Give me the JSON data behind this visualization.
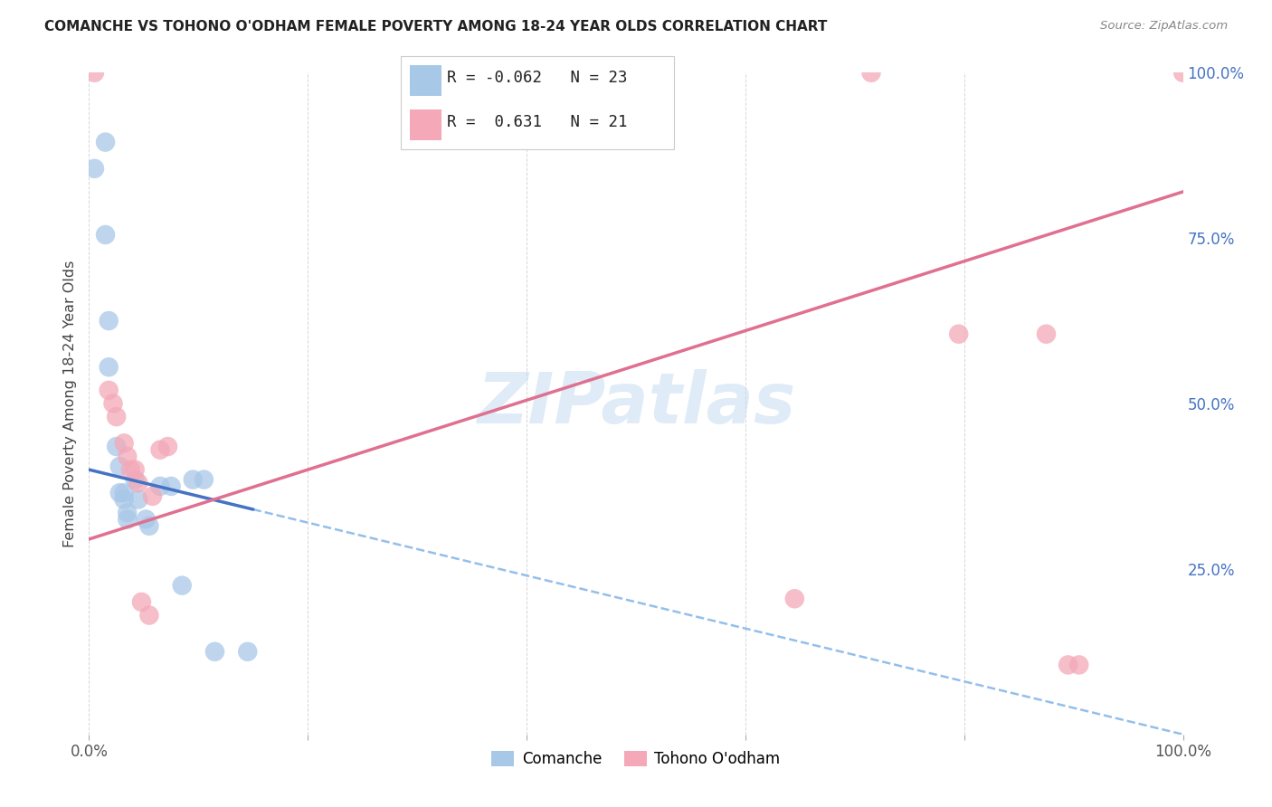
{
  "title": "COMANCHE VS TOHONO O'ODHAM FEMALE POVERTY AMONG 18-24 YEAR OLDS CORRELATION CHART",
  "source": "Source: ZipAtlas.com",
  "ylabel": "Female Poverty Among 18-24 Year Olds",
  "xlim": [
    0,
    1.0
  ],
  "ylim": [
    0,
    1.0
  ],
  "xtick_positions": [
    0.0,
    0.2,
    0.4,
    0.6,
    0.8,
    1.0
  ],
  "xtick_labels": [
    "0.0%",
    "",
    "",
    "",
    "",
    "100.0%"
  ],
  "ytick_labels_right": [
    "25.0%",
    "50.0%",
    "75.0%",
    "100.0%"
  ],
  "ytick_positions_right": [
    0.25,
    0.5,
    0.75,
    1.0
  ],
  "comanche_R": "-0.062",
  "comanche_N": "23",
  "tohono_R": "0.631",
  "tohono_N": "21",
  "watermark": "ZIPatlas",
  "comanche_color": "#a8c8e8",
  "tohono_color": "#f4a8b8",
  "comanche_line_color": "#4472C4",
  "tohono_line_color": "#e07090",
  "comanche_scatter": [
    [
      0.005,
      0.855
    ],
    [
      0.015,
      0.895
    ],
    [
      0.015,
      0.755
    ],
    [
      0.018,
      0.625
    ],
    [
      0.018,
      0.555
    ],
    [
      0.025,
      0.435
    ],
    [
      0.028,
      0.405
    ],
    [
      0.028,
      0.365
    ],
    [
      0.032,
      0.365
    ],
    [
      0.032,
      0.355
    ],
    [
      0.035,
      0.335
    ],
    [
      0.035,
      0.325
    ],
    [
      0.042,
      0.385
    ],
    [
      0.045,
      0.355
    ],
    [
      0.052,
      0.325
    ],
    [
      0.055,
      0.315
    ],
    [
      0.065,
      0.375
    ],
    [
      0.075,
      0.375
    ],
    [
      0.085,
      0.225
    ],
    [
      0.095,
      0.385
    ],
    [
      0.105,
      0.385
    ],
    [
      0.115,
      0.125
    ],
    [
      0.145,
      0.125
    ]
  ],
  "tohono_scatter": [
    [
      0.005,
      1.0
    ],
    [
      0.018,
      0.52
    ],
    [
      0.022,
      0.5
    ],
    [
      0.025,
      0.48
    ],
    [
      0.032,
      0.44
    ],
    [
      0.035,
      0.42
    ],
    [
      0.038,
      0.4
    ],
    [
      0.042,
      0.4
    ],
    [
      0.045,
      0.38
    ],
    [
      0.048,
      0.2
    ],
    [
      0.055,
      0.18
    ],
    [
      0.058,
      0.36
    ],
    [
      0.065,
      0.43
    ],
    [
      0.072,
      0.435
    ],
    [
      0.645,
      0.205
    ],
    [
      0.715,
      1.0
    ],
    [
      0.795,
      0.605
    ],
    [
      0.875,
      0.605
    ],
    [
      0.895,
      0.105
    ],
    [
      0.905,
      0.105
    ],
    [
      1.0,
      1.0
    ]
  ],
  "background_color": "#ffffff",
  "grid_color": "#cccccc",
  "comanche_line_y0": 0.4,
  "comanche_line_y1": 0.34,
  "comanche_line_solid_x_end": 0.15,
  "tohono_line_y0": 0.295,
  "tohono_line_y1": 0.82
}
